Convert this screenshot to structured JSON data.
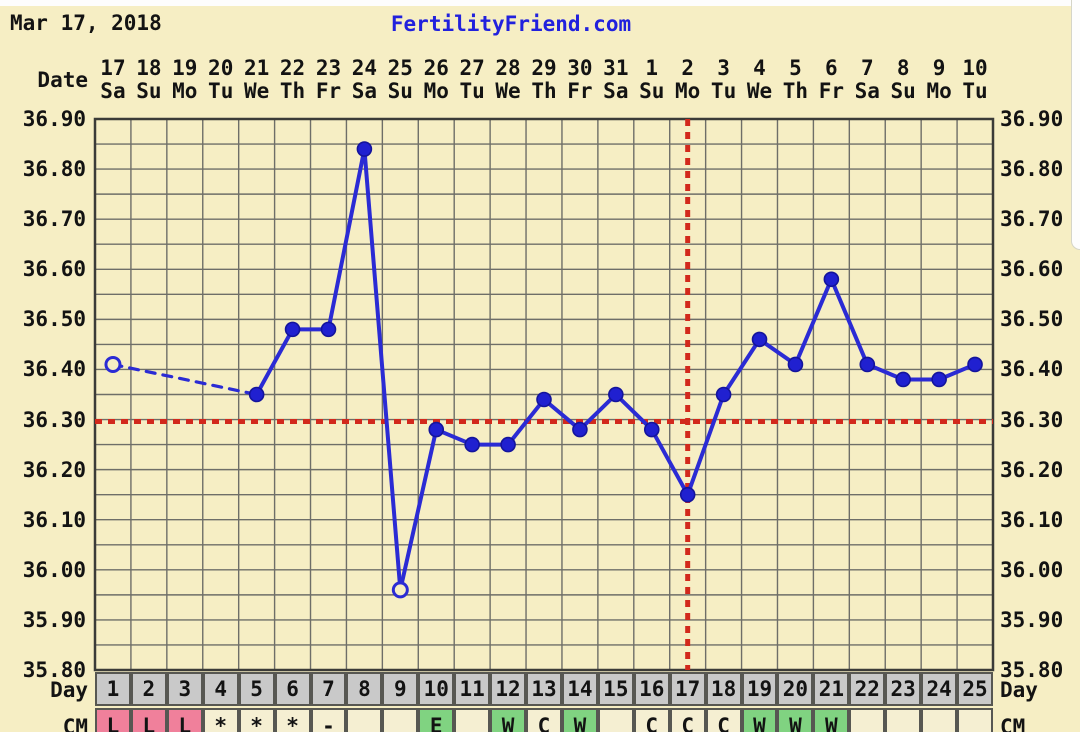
{
  "page": {
    "top_left_date": "Mar 17, 2018",
    "brand": "FertilityFriend.com"
  },
  "chart_data": {
    "type": "line",
    "title": "FertilityFriend.com",
    "subtitle_left": "Mar 17, 2018",
    "x_top": {
      "label": "Date",
      "dates": [
        "17",
        "18",
        "19",
        "20",
        "21",
        "22",
        "23",
        "24",
        "25",
        "26",
        "27",
        "28",
        "29",
        "30",
        "31",
        "1",
        "2",
        "3",
        "4",
        "5",
        "6",
        "7",
        "8",
        "9",
        "10"
      ],
      "weekdays": [
        "Sa",
        "Su",
        "Mo",
        "Tu",
        "We",
        "Th",
        "Fr",
        "Sa",
        "Su",
        "Mo",
        "Tu",
        "We",
        "Th",
        "Fr",
        "Sa",
        "Su",
        "Mo",
        "Tu",
        "We",
        "Th",
        "Fr",
        "Sa",
        "Su",
        "Mo",
        "Tu"
      ]
    },
    "x_bottom": {
      "label": "Day",
      "cycle_days": [
        1,
        2,
        3,
        4,
        5,
        6,
        7,
        8,
        9,
        10,
        11,
        12,
        13,
        14,
        15,
        16,
        17,
        18,
        19,
        20,
        21,
        22,
        23,
        24,
        25
      ]
    },
    "y_axis": {
      "min": 35.8,
      "max": 36.9,
      "major_step": 0.1,
      "minor_step": 0.05,
      "tick_labels": [
        "36.90",
        "36.80",
        "36.70",
        "36.60",
        "36.50",
        "36.40",
        "36.30",
        "36.20",
        "36.10",
        "36.00",
        "35.90",
        "35.80"
      ],
      "grid": true
    },
    "series": [
      {
        "name": "basal-body-temperature-celsius",
        "values": [
          36.41,
          null,
          null,
          null,
          36.35,
          36.48,
          36.48,
          36.84,
          35.96,
          36.28,
          36.25,
          36.25,
          36.34,
          36.28,
          36.35,
          36.28,
          36.15,
          36.35,
          36.46,
          36.41,
          36.58,
          36.41,
          36.38,
          36.38,
          36.41
        ],
        "open_marker_days": [
          1,
          9
        ],
        "gap_segments_dashed": true
      }
    ],
    "coverline_temp": 36.3,
    "ovulation_day": 17,
    "cm_row": {
      "label": "CM",
      "cells": [
        {
          "day": 1,
          "code": "L",
          "kind": "menses"
        },
        {
          "day": 2,
          "code": "L",
          "kind": "menses"
        },
        {
          "day": 3,
          "code": "L",
          "kind": "menses"
        },
        {
          "day": 4,
          "code": "*",
          "kind": "plain"
        },
        {
          "day": 5,
          "code": "*",
          "kind": "plain"
        },
        {
          "day": 6,
          "code": "*",
          "kind": "plain"
        },
        {
          "day": 7,
          "code": "-",
          "kind": "plain"
        },
        {
          "day": 8,
          "code": "",
          "kind": "plain"
        },
        {
          "day": 9,
          "code": "",
          "kind": "plain"
        },
        {
          "day": 10,
          "code": "E",
          "kind": "fertile"
        },
        {
          "day": 11,
          "code": "",
          "kind": "plain"
        },
        {
          "day": 12,
          "code": "W",
          "kind": "fertile"
        },
        {
          "day": 13,
          "code": "C",
          "kind": "plain"
        },
        {
          "day": 14,
          "code": "W",
          "kind": "fertile"
        },
        {
          "day": 15,
          "code": "",
          "kind": "plain"
        },
        {
          "day": 16,
          "code": "C",
          "kind": "plain"
        },
        {
          "day": 17,
          "code": "C",
          "kind": "plain"
        },
        {
          "day": 18,
          "code": "C",
          "kind": "plain"
        },
        {
          "day": 19,
          "code": "W",
          "kind": "fertile"
        },
        {
          "day": 20,
          "code": "W",
          "kind": "fertile"
        },
        {
          "day": 21,
          "code": "W",
          "kind": "fertile"
        },
        {
          "day": 22,
          "code": "",
          "kind": "plain"
        },
        {
          "day": 23,
          "code": "",
          "kind": "plain"
        },
        {
          "day": 24,
          "code": "",
          "kind": "plain"
        },
        {
          "day": 25,
          "code": "",
          "kind": "plain"
        }
      ]
    },
    "colors": {
      "background": "#f6eec4",
      "white": "#fdfdfd",
      "grid": "#6e6e68",
      "plot_border": "#3b3b38",
      "line": "#2b2bd4",
      "marker": "#2020d0",
      "marker_edge": "#14149c",
      "red": "#d2291c",
      "day_row_bg": "#c9c9c9",
      "cell_border": "#575752",
      "menses": "#f0809b",
      "fertile": "#80d381",
      "plain_cell": "#f5efd2",
      "text": "#131313",
      "brand": "#2121dd",
      "scroll_border": "#d5d5c8"
    },
    "legend": "none"
  }
}
